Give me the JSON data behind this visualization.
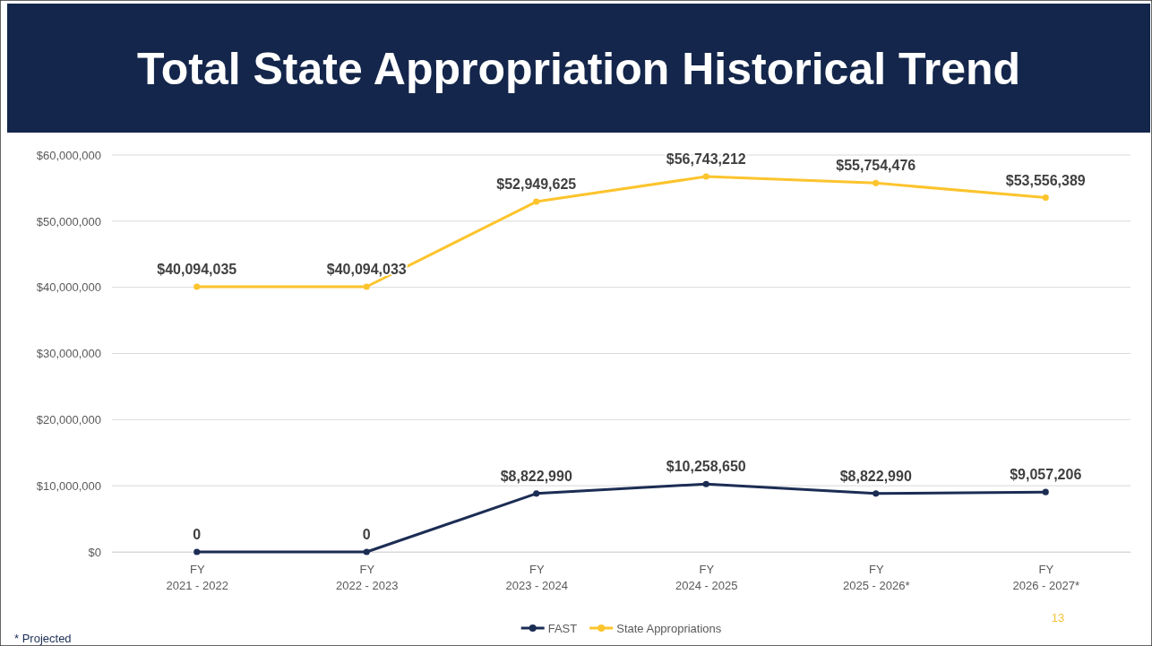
{
  "chart_data": {
    "type": "line",
    "title": "Total State Appropriation Historical Trend",
    "categories": [
      "FY\n2021 - 2022",
      "FY\n2022 - 2023",
      "FY\n2023 - 2024",
      "FY\n2024 - 2025",
      "FY\n2025 - 2026*",
      "FY\n2026 - 2027*"
    ],
    "series": [
      {
        "name": "FAST",
        "color": "#1c2d54",
        "values": [
          0,
          0,
          8822990,
          10258650,
          8822990,
          9057206
        ],
        "value_labels": [
          "0",
          "0",
          "$8,822,990",
          "$10,258,650",
          "$8,822,990",
          "$9,057,206"
        ]
      },
      {
        "name": "State Appropriations",
        "color": "#fcc42d",
        "values": [
          40094035,
          40094033,
          52949625,
          56743212,
          55754476,
          53556389
        ],
        "value_labels": [
          "$40,094,035",
          "$40,094,033",
          "$52,949,625",
          "$56,743,212",
          "$55,754,476",
          "$53,556,389"
        ]
      }
    ],
    "ylim": [
      0,
      60000000
    ],
    "yticks": [
      {
        "value": 0,
        "label": "$0"
      },
      {
        "value": 10000000,
        "label": "$10,000,000"
      },
      {
        "value": 20000000,
        "label": "$20,000,000"
      },
      {
        "value": 30000000,
        "label": "$30,000,000"
      },
      {
        "value": 40000000,
        "label": "$40,000,000"
      },
      {
        "value": 50000000,
        "label": "$50,000,000"
      },
      {
        "value": 60000000,
        "label": "$60,000,000"
      }
    ],
    "grid": "y",
    "legend": "bottom",
    "marker": "circle",
    "line_style": "solid",
    "annotations": [
      "* Projected",
      "13"
    ]
  }
}
